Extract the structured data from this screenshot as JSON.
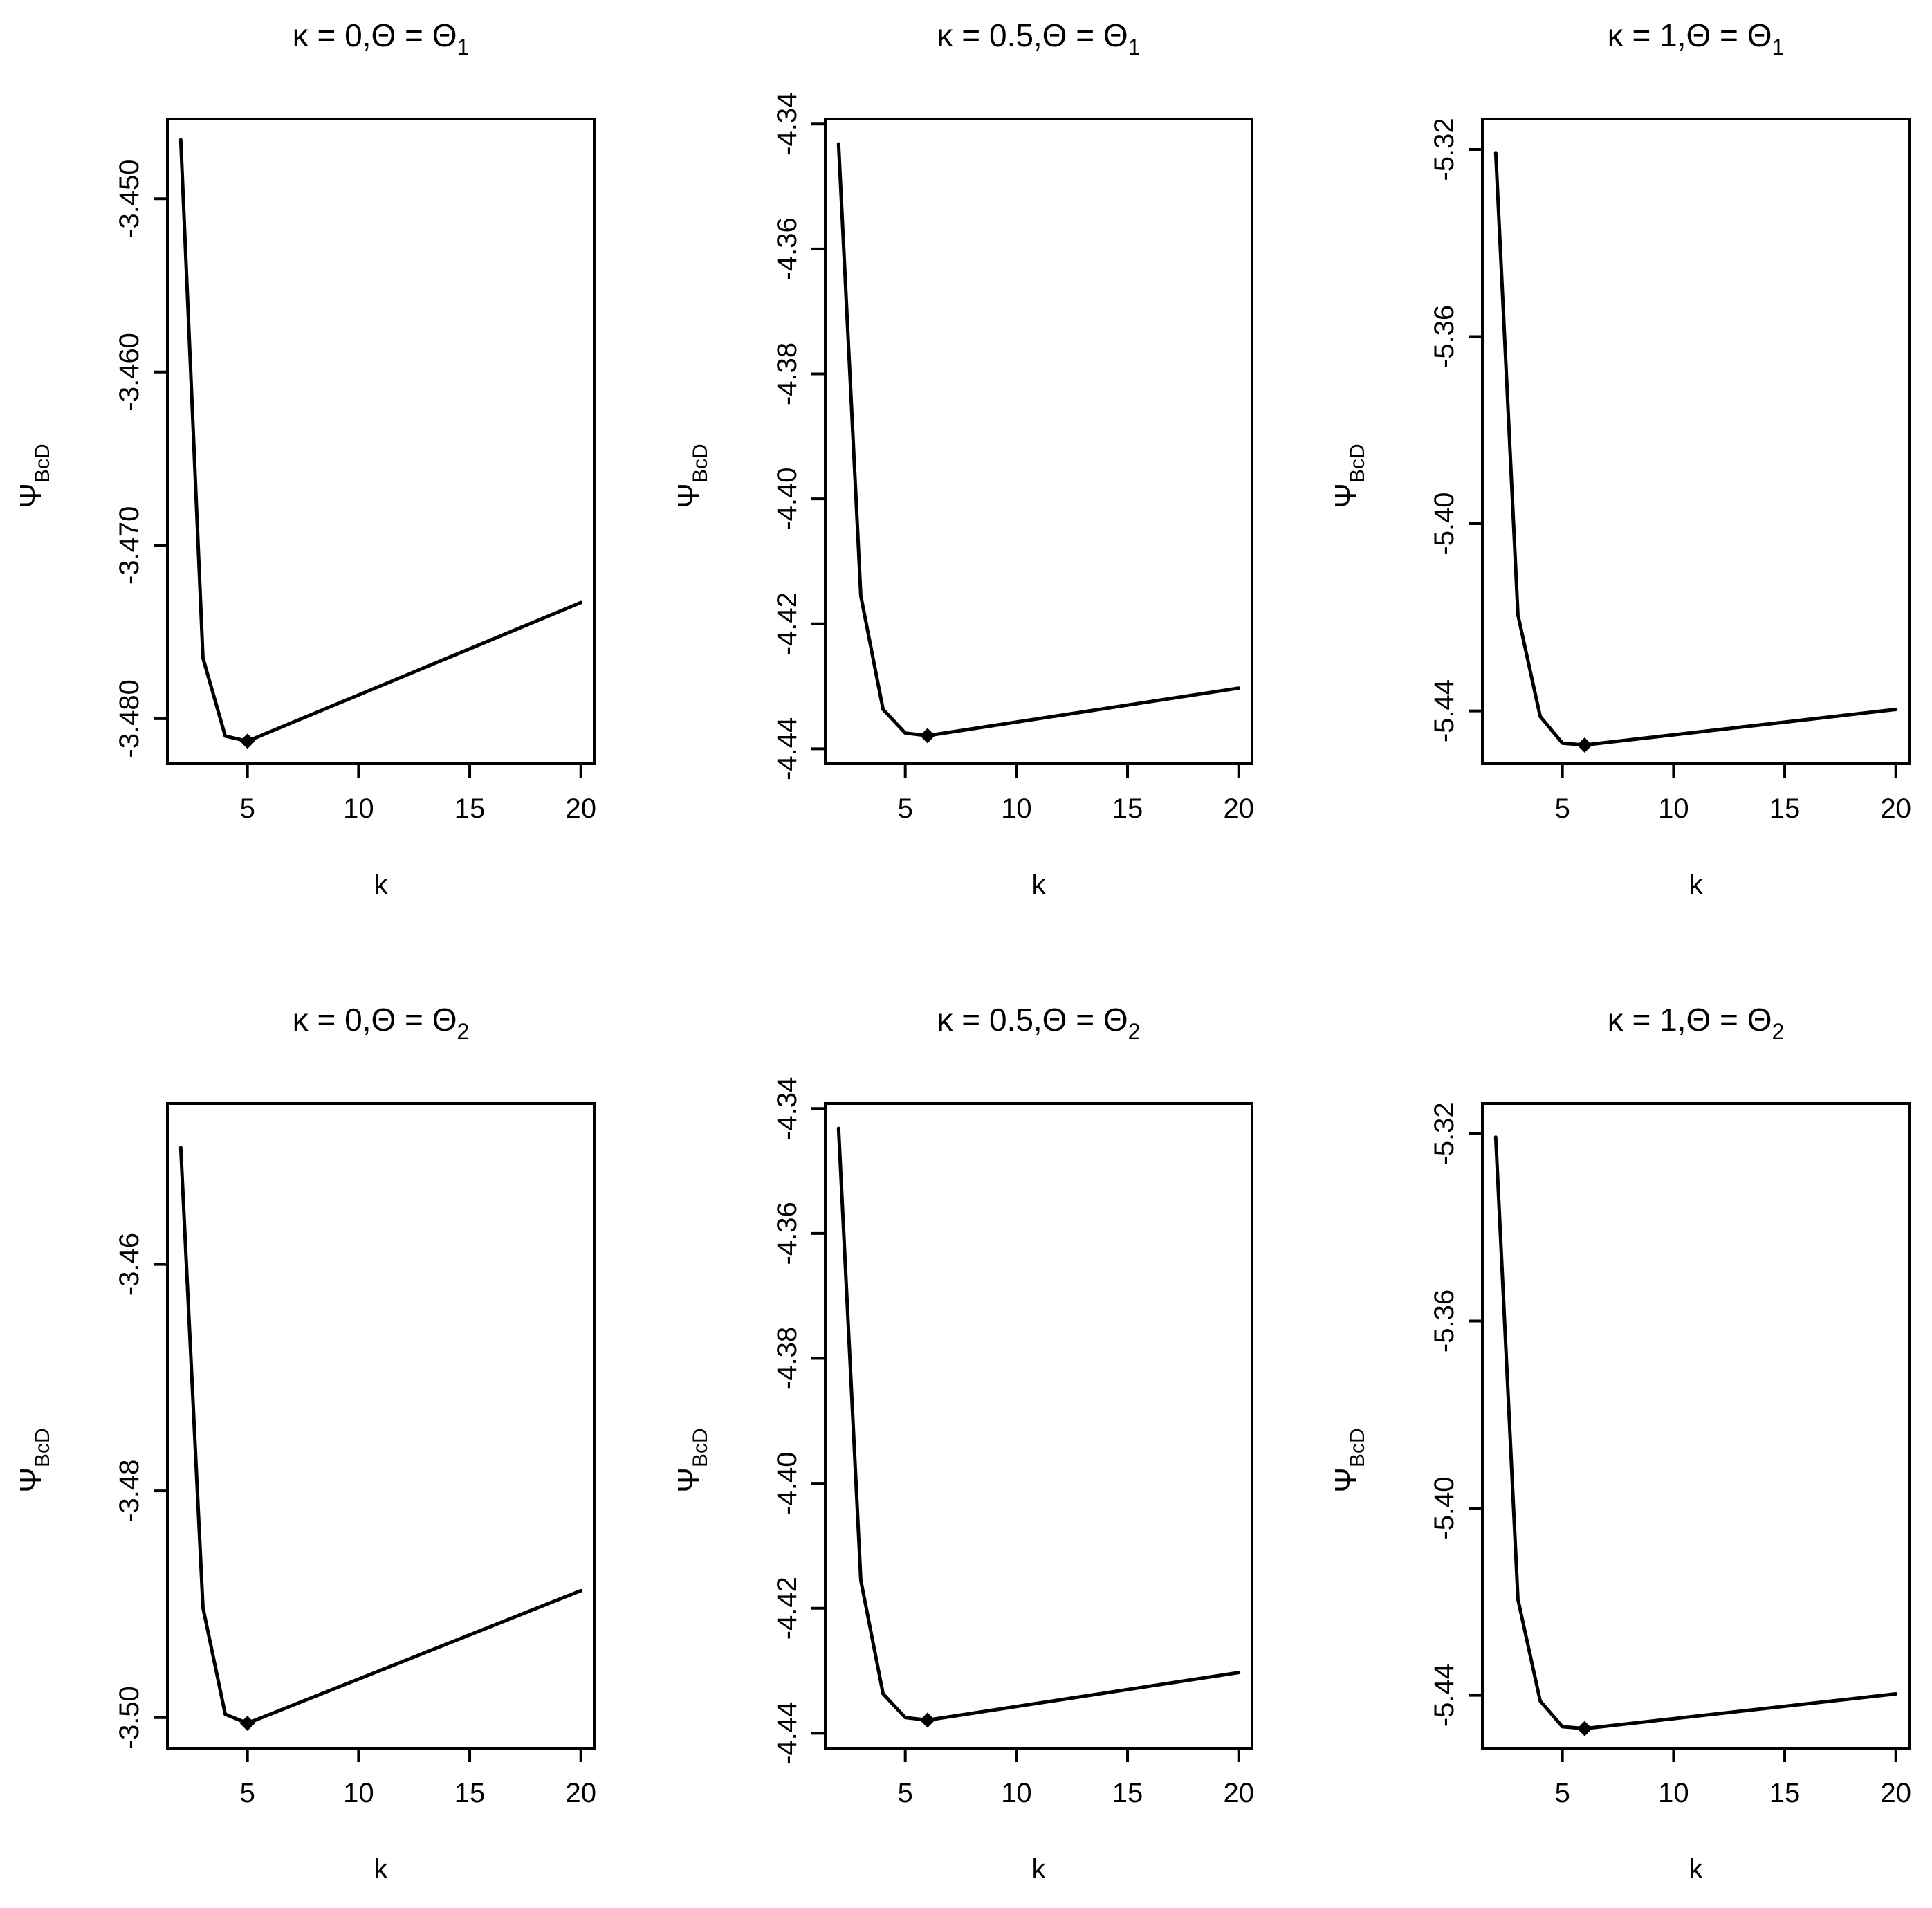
{
  "chart_data": [
    {
      "type": "line",
      "title": {
        "lhs": "κ = 0,Θ = Θ",
        "sub": "1"
      },
      "xlabel": "k",
      "ylabel": {
        "main": "Ψ",
        "sub": "BcD"
      },
      "x": [
        2,
        3,
        4,
        5,
        20
      ],
      "y": [
        -3.4466,
        -3.4765,
        -3.481,
        -3.4813,
        -3.4733
      ],
      "xlim": [
        1.4,
        20.6
      ],
      "ylim": [
        -3.4826,
        -3.4454
      ],
      "xticks": [
        5,
        10,
        15,
        20
      ],
      "yticks": [
        -3.45,
        -3.46,
        -3.47,
        -3.48
      ],
      "yticklabels": [
        "-3.450",
        "-3.460",
        "-3.470",
        "-3.480"
      ],
      "marker": {
        "x": 5,
        "y": -3.4813
      }
    },
    {
      "type": "line",
      "title": {
        "lhs": "κ = 0.5,Θ = Θ",
        "sub": "1"
      },
      "xlabel": "k",
      "ylabel": {
        "main": "Ψ",
        "sub": "BcD"
      },
      "x": [
        2,
        3,
        4,
        5,
        6,
        20
      ],
      "y": [
        -4.3432,
        -4.4155,
        -4.4337,
        -4.4375,
        -4.4379,
        -4.4303
      ],
      "xlim": [
        1.4,
        20.6
      ],
      "ylim": [
        -4.4424,
        -4.3392
      ],
      "xticks": [
        5,
        10,
        15,
        20
      ],
      "yticks": [
        -4.34,
        -4.36,
        -4.38,
        -4.4,
        -4.42,
        -4.44
      ],
      "yticklabels": [
        "-4.34",
        "-4.36",
        "-4.38",
        "-4.40",
        "-4.42",
        "-4.44"
      ],
      "marker": {
        "x": 6,
        "y": -4.4379
      }
    },
    {
      "type": "line",
      "title": {
        "lhs": "κ = 1,Θ = Θ",
        "sub": "1"
      },
      "xlabel": "k",
      "ylabel": {
        "main": "Ψ",
        "sub": "BcD"
      },
      "x": [
        2,
        3,
        4,
        5,
        6,
        20
      ],
      "y": [
        -5.3207,
        -5.4195,
        -5.4412,
        -5.4469,
        -5.4473,
        -5.4397
      ],
      "xlim": [
        1.4,
        20.6
      ],
      "ylim": [
        -5.4513,
        -5.3135
      ],
      "xticks": [
        5,
        10,
        15,
        20
      ],
      "yticks": [
        -5.32,
        -5.36,
        -5.4,
        -5.44
      ],
      "yticklabels": [
        "-5.32",
        "-5.36",
        "-5.40",
        "-5.44"
      ],
      "marker": {
        "x": 6,
        "y": -5.4473
      }
    },
    {
      "type": "line",
      "title": {
        "lhs": "κ = 0,Θ = Θ",
        "sub": "2"
      },
      "xlabel": "k",
      "ylabel": {
        "main": "Ψ",
        "sub": "BcD"
      },
      "x": [
        2,
        3,
        4,
        5,
        20
      ],
      "y": [
        -3.4497,
        -3.4903,
        -3.4997,
        -3.5005,
        -3.4888
      ],
      "xlim": [
        1.4,
        20.6
      ],
      "ylim": [
        -3.5027,
        -3.4458
      ],
      "xticks": [
        5,
        10,
        15,
        20
      ],
      "yticks": [
        -3.46,
        -3.48,
        -3.5
      ],
      "yticklabels": [
        "-3.46",
        "-3.48",
        "-3.50"
      ],
      "marker": {
        "x": 5,
        "y": -3.5005
      }
    },
    {
      "type": "line",
      "title": {
        "lhs": "κ = 0.5,Θ = Θ",
        "sub": "2"
      },
      "xlabel": "k",
      "ylabel": {
        "main": "Ψ",
        "sub": "BcD"
      },
      "x": [
        2,
        3,
        4,
        5,
        6,
        20
      ],
      "y": [
        -4.3432,
        -4.4155,
        -4.4337,
        -4.4375,
        -4.4379,
        -4.4303
      ],
      "xlim": [
        1.4,
        20.6
      ],
      "ylim": [
        -4.4424,
        -4.3392
      ],
      "xticks": [
        5,
        10,
        15,
        20
      ],
      "yticks": [
        -4.34,
        -4.36,
        -4.38,
        -4.4,
        -4.42,
        -4.44
      ],
      "yticklabels": [
        "-4.34",
        "-4.36",
        "-4.38",
        "-4.40",
        "-4.42",
        "-4.44"
      ],
      "marker": {
        "x": 6,
        "y": -4.4379
      }
    },
    {
      "type": "line",
      "title": {
        "lhs": "κ = 1,Θ = Θ",
        "sub": "2"
      },
      "xlabel": "k",
      "ylabel": {
        "main": "Ψ",
        "sub": "BcD"
      },
      "x": [
        2,
        3,
        4,
        5,
        6,
        20
      ],
      "y": [
        -5.3207,
        -5.4195,
        -5.4412,
        -5.4467,
        -5.4471,
        -5.4397
      ],
      "xlim": [
        1.4,
        20.6
      ],
      "ylim": [
        -5.4513,
        -5.3135
      ],
      "xticks": [
        5,
        10,
        15,
        20
      ],
      "yticks": [
        -5.32,
        -5.36,
        -5.4,
        -5.44
      ],
      "yticklabels": [
        "-5.32",
        "-5.36",
        "-5.40",
        "-5.44"
      ],
      "marker": {
        "x": 6,
        "y": -5.4471
      }
    }
  ]
}
